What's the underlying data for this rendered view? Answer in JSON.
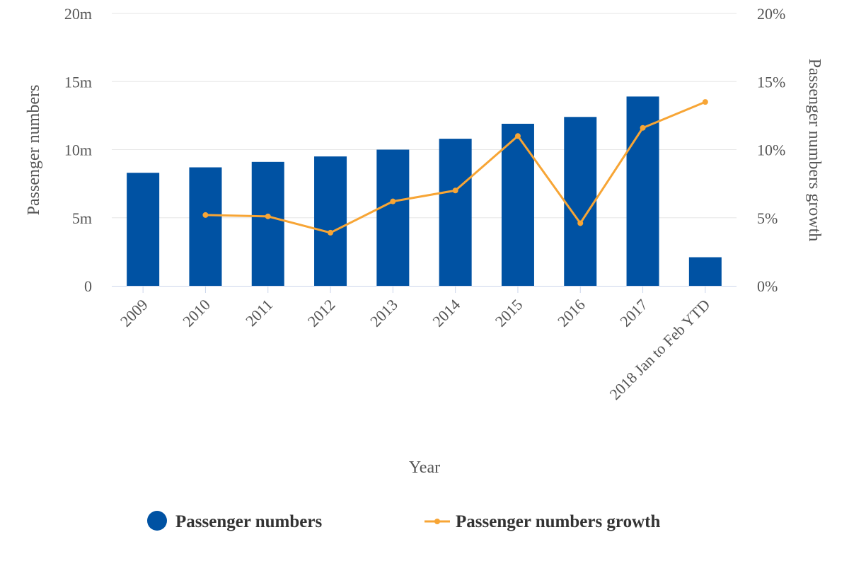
{
  "chart_data": {
    "type": "bar",
    "categories": [
      "2009",
      "2010",
      "2011",
      "2012",
      "2013",
      "2014",
      "2015",
      "2016",
      "2017",
      "2018 Jan to Feb YTD"
    ],
    "series": [
      {
        "name": "Passenger numbers",
        "type": "bar",
        "axis": "left",
        "color": "#0052a3",
        "values": [
          8.3,
          8.7,
          9.1,
          9.5,
          10.0,
          10.8,
          11.9,
          12.4,
          13.9,
          2.1
        ]
      },
      {
        "name": "Passenger numbers growth",
        "type": "line",
        "axis": "right",
        "color": "#f7a535",
        "values": [
          null,
          5.2,
          5.1,
          3.9,
          6.2,
          7.0,
          11.0,
          4.6,
          11.6,
          13.5
        ]
      }
    ],
    "xlabel": "Year",
    "ylabel": "Passenger numbers",
    "ylabel_right": "Passenger numbers growth",
    "ylim": [
      0,
      20
    ],
    "ylim_right": [
      0,
      20
    ],
    "yticks": [
      "0",
      "5m",
      "10m",
      "15m",
      "20m"
    ],
    "yticks_right": [
      "0%",
      "5%",
      "10%",
      "15%",
      "20%"
    ],
    "grid": true,
    "legend_position": "bottom"
  }
}
